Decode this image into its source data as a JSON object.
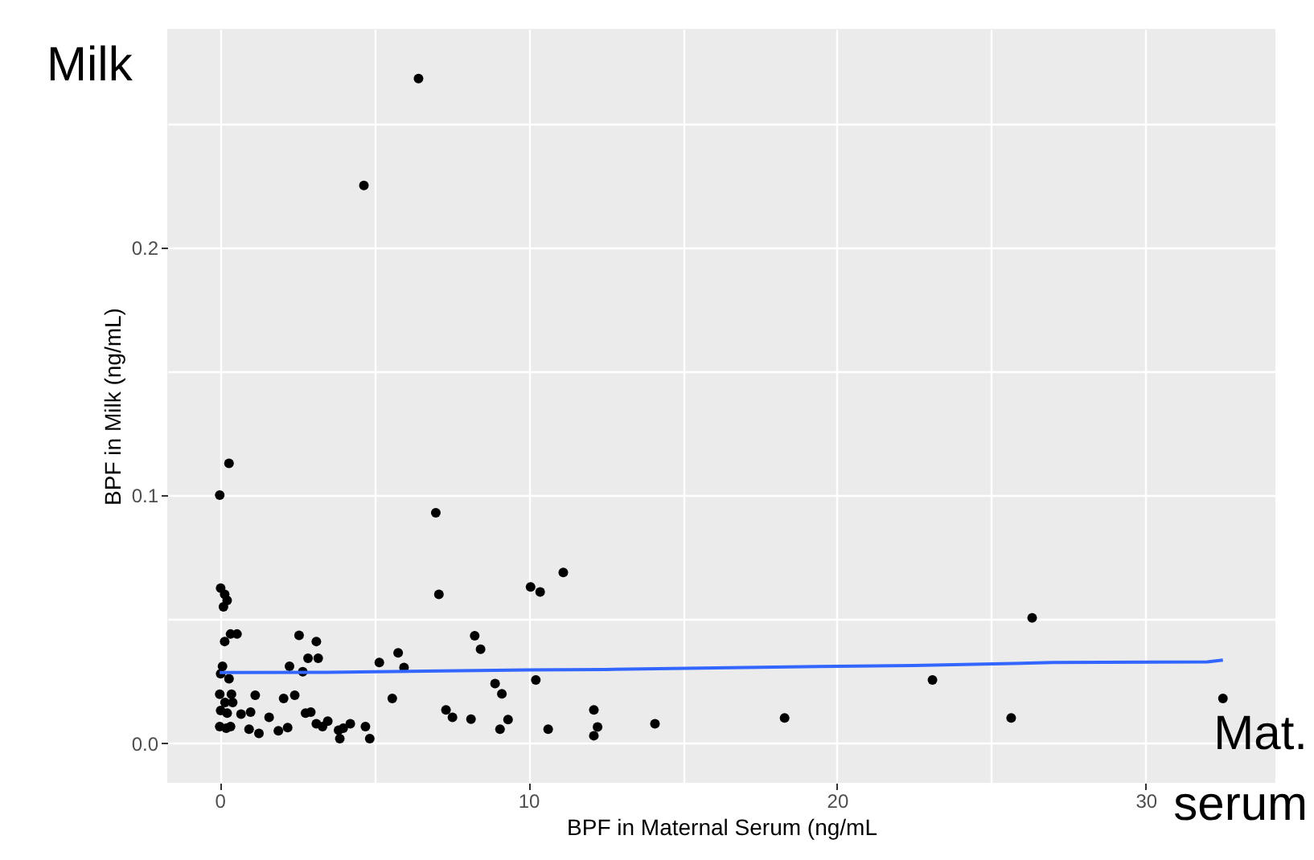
{
  "chart_data": {
    "type": "scatter",
    "xlabel": "BPF in Maternal Serum (ng/mL",
    "ylabel": "BPF in Milk (ng/mL)",
    "annotations": [
      "Milk",
      "Mat.\nserum"
    ],
    "xlim": [
      -1.7,
      34.2
    ],
    "xticks": [
      0,
      {
        "value": 5,
        "label": null
      },
      10,
      {
        "value": 15,
        "label": null
      },
      20,
      {
        "value": 25,
        "label": null
      },
      30
    ],
    "ylim": [
      -0.016,
      0.288
    ],
    "yticks": [
      {
        "value": 0,
        "label": "0.0"
      },
      {
        "value": 0.05,
        "label": null
      },
      {
        "value": 0.1,
        "label": "0.1"
      },
      {
        "value": 0.15,
        "label": null
      },
      {
        "value": 0.2,
        "label": "0.2"
      },
      {
        "value": 0.25,
        "label": null
      }
    ],
    "grid": true,
    "series": [
      {
        "marker": "circle",
        "color": "#000000",
        "x": [
          0,
          0.03,
          0.16,
          0.24,
          0.12,
          0.35,
          0.56,
          0.16,
          0.09,
          0.03,
          0.3,
          0,
          0.38,
          0.17,
          0.42,
          0.03,
          0.24,
          0,
          0.21,
          0.35,
          0.69,
          1.0,
          1.15,
          0.95,
          1.27,
          1.6,
          1.9,
          2.2,
          2.07,
          2.43,
          2.26,
          2.69,
          2.57,
          3.13,
          2.86,
          3.19,
          2.78,
          2.95,
          3.13,
          3.33,
          3.5,
          3.85,
          3.89,
          4.0,
          4.23,
          4.72,
          4.86,
          5.17,
          5.59,
          5.78,
          5.97,
          7.0,
          7.1,
          7.33,
          7.54,
          8.14,
          8.26,
          8.45,
          8.92,
          9.14,
          9.08,
          9.34,
          10.07,
          10.38,
          11.13,
          10.24,
          10.64,
          12.12,
          12.24,
          12.12,
          14.1,
          18.3,
          23.09,
          25.64,
          26.32,
          32.5,
          6.44,
          4.67,
          0.3
        ],
        "values": [
          0.1,
          0.0625,
          0.06,
          0.0576,
          0.055,
          0.044,
          0.044,
          0.041,
          0.031,
          0.028,
          0.026,
          0.0197,
          0.0197,
          0.0164,
          0.0164,
          0.0132,
          0.0121,
          0.0067,
          0.006,
          0.0067,
          0.0117,
          0.0125,
          0.0193,
          0.0056,
          0.0039,
          0.0104,
          0.005,
          0.0063,
          0.018,
          0.0193,
          0.031,
          0.0288,
          0.0435,
          0.041,
          0.0342,
          0.0342,
          0.0121,
          0.0125,
          0.0078,
          0.0067,
          0.0089,
          0.0052,
          0.0018,
          0.006,
          0.0078,
          0.0067,
          0.0018,
          0.0325,
          0.018,
          0.0364,
          0.0305,
          0.0929,
          0.06,
          0.0134,
          0.0104,
          0.0097,
          0.0433,
          0.0379,
          0.024,
          0.0199,
          0.0056,
          0.0095,
          0.063,
          0.061,
          0.0688,
          0.0255,
          0.0056,
          0.0134,
          0.0065,
          0.003,
          0.0078,
          0.0102,
          0.0255,
          0.0102,
          0.0505,
          0.018,
          0.268,
          0.2249,
          0.1128
        ]
      },
      {
        "type": "line",
        "color": "#3366ff",
        "x": [
          0,
          3.5,
          10,
          12.5,
          20,
          22.5,
          27,
          32,
          32.5
        ],
        "values": [
          0.0285,
          0.0286,
          0.0295,
          0.0297,
          0.031,
          0.0313,
          0.0325,
          0.0328,
          0.0335
        ]
      }
    ]
  }
}
